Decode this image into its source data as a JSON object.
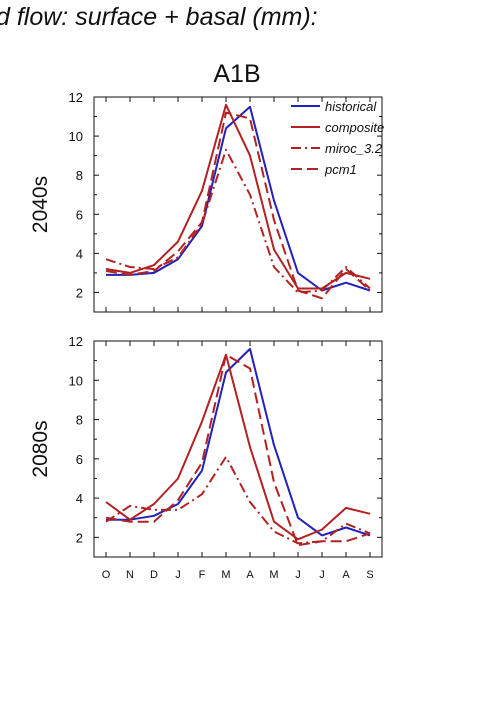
{
  "figure": {
    "title": "d flow: surface + basal (mm):",
    "scenario": "A1B"
  },
  "colors": {
    "historical": "#2222bb",
    "model": "#b22222"
  },
  "chart_data": [
    {
      "type": "line",
      "panel_label": "2040s",
      "x": [
        "O",
        "N",
        "D",
        "J",
        "F",
        "M",
        "A",
        "M",
        "J",
        "J",
        "A",
        "S"
      ],
      "ylim": [
        1,
        12
      ],
      "yticks": [
        2,
        4,
        6,
        8,
        10,
        12
      ],
      "grid": false,
      "legend_placement": "top-right",
      "series": [
        {
          "name": "historical",
          "style": "solid",
          "color": "#2222bb",
          "values": [
            2.9,
            2.9,
            3.0,
            3.7,
            5.4,
            10.4,
            11.5,
            6.7,
            3.0,
            2.1,
            2.5,
            2.1
          ]
        },
        {
          "name": "composite",
          "style": "solid",
          "color": "#b22222",
          "values": [
            3.2,
            3.0,
            3.4,
            4.6,
            7.2,
            11.6,
            9.0,
            4.2,
            2.2,
            2.2,
            3.0,
            2.7
          ]
        },
        {
          "name": "miroc_3.2",
          "style": "dashdot",
          "color": "#b22222",
          "values": [
            3.7,
            3.3,
            3.2,
            3.8,
            5.5,
            9.3,
            7.0,
            3.3,
            2.0,
            2.1,
            3.3,
            2.2
          ]
        },
        {
          "name": "pcm1",
          "style": "dashed",
          "color": "#b22222",
          "values": [
            3.1,
            2.9,
            3.1,
            4.1,
            5.6,
            11.2,
            10.9,
            5.7,
            2.1,
            1.7,
            3.2,
            2.1
          ]
        }
      ]
    },
    {
      "type": "line",
      "panel_label": "2080s",
      "x": [
        "O",
        "N",
        "D",
        "J",
        "F",
        "M",
        "A",
        "M",
        "J",
        "J",
        "A",
        "S"
      ],
      "ylim": [
        1,
        12
      ],
      "yticks": [
        2,
        4,
        6,
        8,
        10,
        12
      ],
      "grid": false,
      "series": [
        {
          "name": "historical",
          "style": "solid",
          "color": "#2222bb",
          "values": [
            2.9,
            2.9,
            3.1,
            3.7,
            5.4,
            10.4,
            11.6,
            6.7,
            3.0,
            2.1,
            2.5,
            2.1
          ]
        },
        {
          "name": "composite",
          "style": "solid",
          "color": "#b22222",
          "values": [
            3.8,
            2.9,
            3.7,
            5.0,
            7.9,
            11.3,
            6.6,
            2.8,
            1.9,
            2.4,
            3.5,
            3.2
          ]
        },
        {
          "name": "miroc_3.2",
          "style": "dashdot",
          "color": "#b22222",
          "values": [
            2.8,
            3.6,
            3.4,
            3.4,
            4.2,
            6.1,
            3.8,
            2.3,
            1.7,
            1.8,
            2.7,
            2.2
          ]
        },
        {
          "name": "pcm1",
          "style": "dashed",
          "color": "#b22222",
          "values": [
            3.0,
            2.8,
            2.8,
            3.9,
            5.8,
            11.3,
            10.6,
            4.8,
            1.6,
            1.8,
            1.8,
            2.2
          ]
        }
      ]
    }
  ]
}
